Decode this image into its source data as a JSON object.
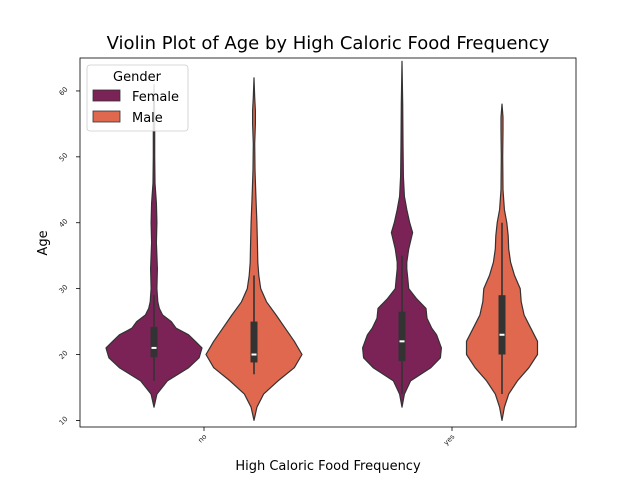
{
  "chart_data": {
    "type": "violin",
    "title": "Violin Plot of Age by High Caloric Food Frequency",
    "xlabel": "High Caloric Food Frequency",
    "ylabel": "Age",
    "categories": [
      "no",
      "yes"
    ],
    "yticks": [
      10,
      20,
      30,
      40,
      50,
      60
    ],
    "ylim": [
      9,
      65
    ],
    "grid": false,
    "legend": {
      "title": "Gender",
      "placement": "top-left",
      "entries": [
        "Female",
        "Male"
      ]
    },
    "series": [
      {
        "name": "Female",
        "color": "#7b2357",
        "violins": [
          {
            "category": "no",
            "min": 15.0,
            "q1": 19.6,
            "median": 21.0,
            "q3": 24.2,
            "max": 61.0,
            "whisker_low": 16.0,
            "whisker_high": 29.0,
            "density": [
              [
                12.0,
                0
              ],
              [
                14.0,
                0.06
              ],
              [
                16.0,
                0.28
              ],
              [
                18.0,
                0.72
              ],
              [
                19.5,
                0.94
              ],
              [
                21.0,
                1.0
              ],
              [
                22.0,
                0.86
              ],
              [
                23.0,
                0.72
              ],
              [
                24.0,
                0.46
              ],
              [
                25.0,
                0.36
              ],
              [
                26.0,
                0.18
              ],
              [
                27.0,
                0.11
              ],
              [
                28.0,
                0.08
              ],
              [
                30.0,
                0.06
              ],
              [
                33.0,
                0.07
              ],
              [
                35.0,
                0.06
              ],
              [
                37.0,
                0.05
              ],
              [
                40.0,
                0.06
              ],
              [
                43.0,
                0.05
              ],
              [
                46.0,
                0.02
              ],
              [
                50.0,
                0.015
              ],
              [
                56.0,
                0.015
              ],
              [
                61.0,
                0
              ]
            ]
          },
          {
            "category": "yes",
            "min": 14.0,
            "q1": 19.0,
            "median": 22.0,
            "q3": 26.5,
            "max": 64.5,
            "whisker_low": 14.0,
            "whisker_high": 35.0,
            "density": [
              [
                12.0,
                0
              ],
              [
                14.0,
                0.05
              ],
              [
                16.0,
                0.18
              ],
              [
                18.0,
                0.6
              ],
              [
                19.5,
                0.8
              ],
              [
                21.0,
                0.82
              ],
              [
                23.0,
                0.72
              ],
              [
                24.0,
                0.62
              ],
              [
                25.5,
                0.52
              ],
              [
                27.0,
                0.5
              ],
              [
                28.5,
                0.3
              ],
              [
                30.0,
                0.14
              ],
              [
                31.5,
                0.12
              ],
              [
                33.0,
                0.1
              ],
              [
                34.0,
                0.1
              ],
              [
                36.0,
                0.14
              ],
              [
                38.5,
                0.22
              ],
              [
                40.0,
                0.16
              ],
              [
                42.0,
                0.1
              ],
              [
                44.0,
                0.05
              ],
              [
                47.0,
                0.03
              ],
              [
                52.0,
                0.02
              ],
              [
                58.0,
                0.015
              ],
              [
                64.5,
                0
              ]
            ]
          }
        ]
      },
      {
        "name": "Male",
        "color": "#e0684e",
        "violins": [
          {
            "category": "no",
            "min": 17.0,
            "q1": 18.8,
            "median": 20.0,
            "q3": 25.0,
            "max": 62.0,
            "whisker_low": 17.0,
            "whisker_high": 32.0,
            "density": [
              [
                10.0,
                0
              ],
              [
                12.0,
                0.06
              ],
              [
                14.0,
                0.2
              ],
              [
                16.0,
                0.5
              ],
              [
                18.0,
                0.84
              ],
              [
                20.0,
                1.0
              ],
              [
                22.0,
                0.84
              ],
              [
                24.0,
                0.65
              ],
              [
                26.0,
                0.46
              ],
              [
                28.0,
                0.26
              ],
              [
                30.0,
                0.14
              ],
              [
                32.0,
                0.1
              ],
              [
                34.0,
                0.08
              ],
              [
                37.0,
                0.07
              ],
              [
                40.0,
                0.06
              ],
              [
                44.0,
                0.04
              ],
              [
                48.0,
                0.02
              ],
              [
                52.0,
                0.015
              ],
              [
                55.0,
                0.03
              ],
              [
                57.0,
                0.03
              ],
              [
                59.0,
                0.015
              ],
              [
                62.0,
                0
              ]
            ]
          },
          {
            "category": "yes",
            "min": 14.0,
            "q1": 20.0,
            "median": 23.0,
            "q3": 29.0,
            "max": 58.0,
            "whisker_low": 14.0,
            "whisker_high": 40.0,
            "density": [
              [
                10.0,
                0
              ],
              [
                12.0,
                0.05
              ],
              [
                14.0,
                0.14
              ],
              [
                16.0,
                0.32
              ],
              [
                18.0,
                0.56
              ],
              [
                20.0,
                0.74
              ],
              [
                22.0,
                0.74
              ],
              [
                24.0,
                0.6
              ],
              [
                26.0,
                0.46
              ],
              [
                28.0,
                0.4
              ],
              [
                30.0,
                0.38
              ],
              [
                32.0,
                0.26
              ],
              [
                34.0,
                0.18
              ],
              [
                36.0,
                0.14
              ],
              [
                38.0,
                0.13
              ],
              [
                40.0,
                0.1
              ],
              [
                42.0,
                0.05
              ],
              [
                45.0,
                0.02
              ],
              [
                50.0,
                0.015
              ],
              [
                54.0,
                0.02
              ],
              [
                56.0,
                0.02
              ],
              [
                58.0,
                0
              ]
            ]
          }
        ]
      }
    ]
  }
}
